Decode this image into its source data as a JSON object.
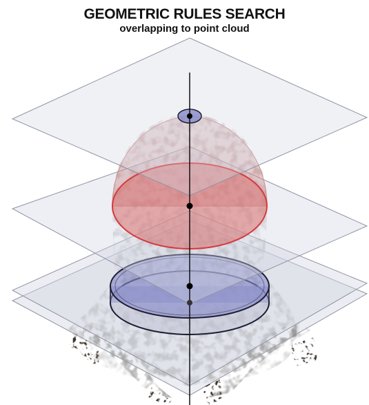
{
  "header": {
    "title": "GEOMETRIC RULES SEARCH",
    "subtitle": "overlapping to point cloud"
  },
  "colors": {
    "plane_fill": "#c9cede",
    "plane_stroke": "#8f93a3",
    "dome_fill": "#c98e8e",
    "red_disc_fill": "#d97a7a",
    "red_disc_stroke": "#d6393b",
    "blue_disc_fill": "#8689c8",
    "blue_disc_stroke": "#1d1d33",
    "point_cloud": "#9a9a9a",
    "dark_speckle": "#3a2e26",
    "axis": "#111111"
  }
}
